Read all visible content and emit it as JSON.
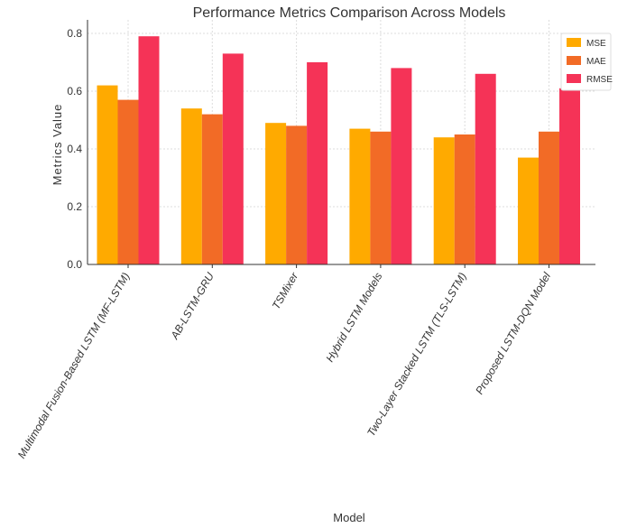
{
  "chart_data": {
    "type": "bar",
    "title": "Performance Metrics Comparison Across Models",
    "xlabel": "Model",
    "ylabel": "Metrics Value",
    "categories": [
      "Multimodal Fusion-Based LSTM (MF-LSTM)",
      "AB-LSTM-GRU",
      "TSMixer",
      "Hybrid LSTM Models",
      "Two-Layer Stacked LSTM (TLS-LSTM)",
      "Proposed LSTM-DQN Model"
    ],
    "series": [
      {
        "name": "MSE",
        "color": "#FFAA00",
        "values": [
          0.62,
          0.54,
          0.49,
          0.47,
          0.44,
          0.37
        ]
      },
      {
        "name": "MAE",
        "color": "#F26B26",
        "values": [
          0.57,
          0.52,
          0.48,
          0.46,
          0.45,
          0.46
        ]
      },
      {
        "name": "RMSE",
        "color": "#F53357",
        "values": [
          0.79,
          0.73,
          0.7,
          0.68,
          0.66,
          0.61
        ]
      }
    ],
    "ylim": [
      0,
      0.84
    ],
    "yticks": [
      "0.0",
      "0.2",
      "0.4",
      "0.6",
      "0.8"
    ],
    "grid": true,
    "legend_position": "top-right"
  }
}
